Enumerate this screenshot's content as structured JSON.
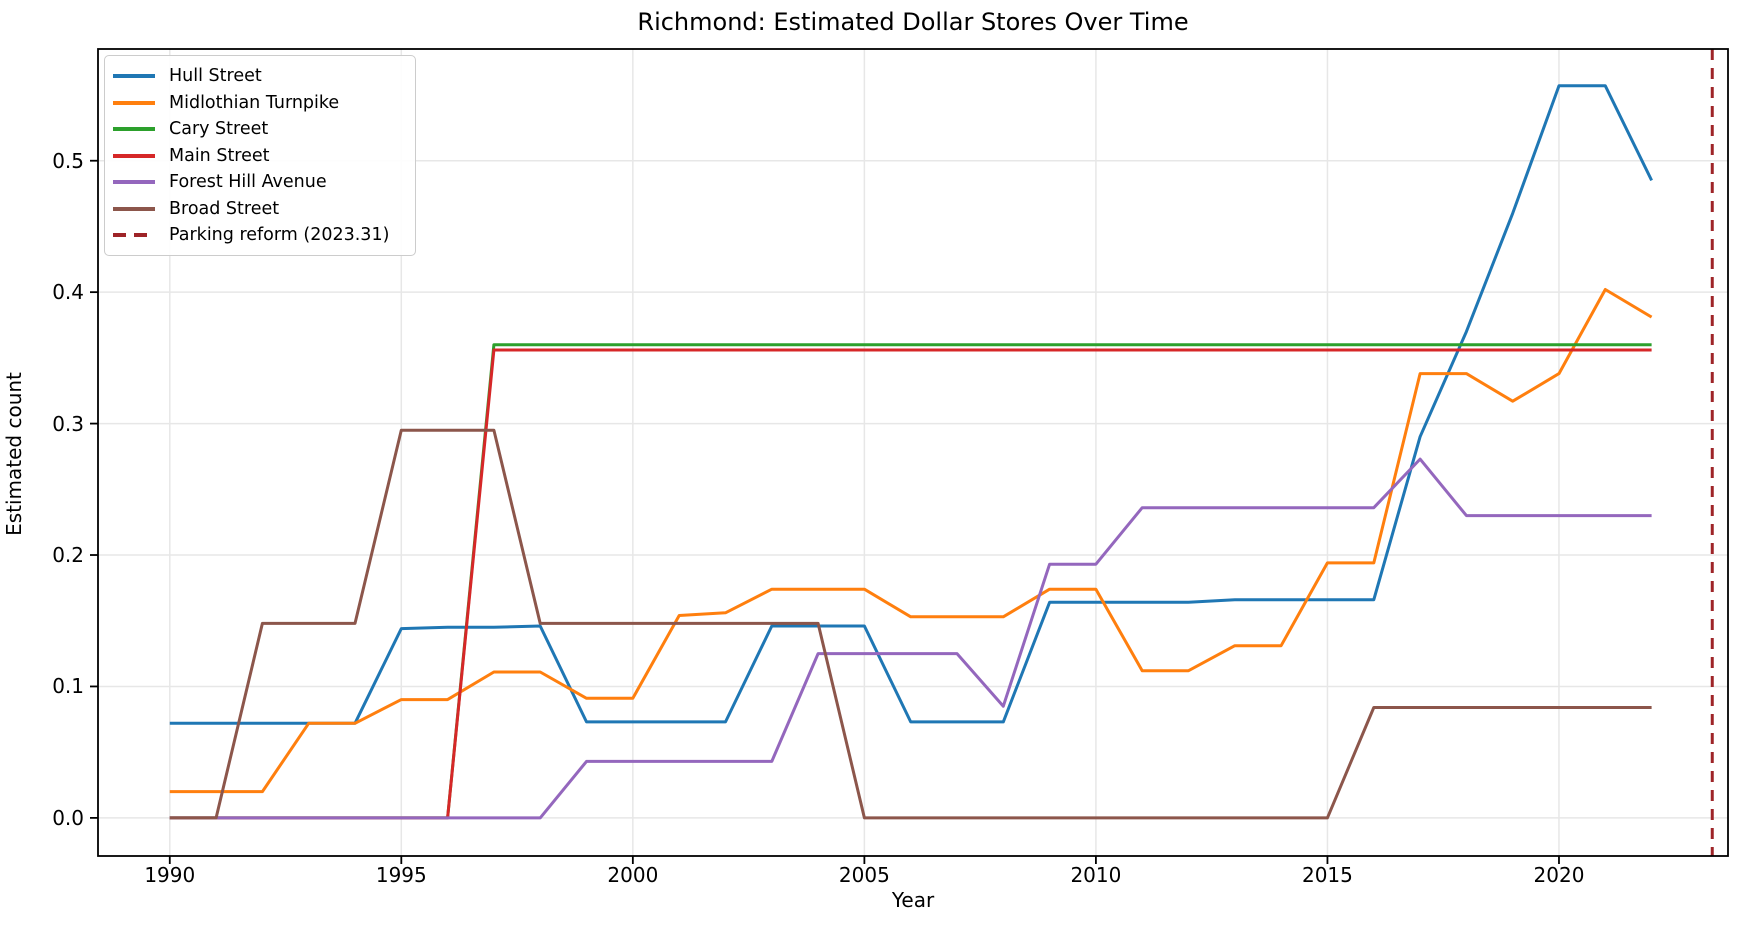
{
  "title": "Richmond: Estimated Dollar Stores Over Time",
  "chart_data": {
    "type": "line",
    "title": "Richmond: Estimated Dollar Stores Over Time",
    "xlabel": "Year",
    "ylabel": "Estimated count",
    "xlim": [
      1988.45,
      2023.65
    ],
    "ylim": [
      -0.029,
      0.585
    ],
    "xticks": [
      1990,
      1995,
      2000,
      2005,
      2010,
      2015,
      2020
    ],
    "yticks": [
      0.0,
      0.1,
      0.2,
      0.3,
      0.4,
      0.5
    ],
    "ytick_labels": [
      "0.0",
      "0.1",
      "0.2",
      "0.3",
      "0.4",
      "0.5"
    ],
    "grid": true,
    "legend_position": "upper left",
    "x": [
      1990,
      1991,
      1992,
      1993,
      1994,
      1995,
      1996,
      1997,
      1998,
      1999,
      2000,
      2001,
      2002,
      2003,
      2004,
      2005,
      2006,
      2007,
      2008,
      2009,
      2010,
      2011,
      2012,
      2013,
      2014,
      2015,
      2016,
      2017,
      2018,
      2019,
      2020,
      2021,
      2022
    ],
    "series": [
      {
        "name": "Hull Street",
        "color": "#1f77b4",
        "values": [
          0.072,
          0.072,
          0.072,
          0.072,
          0.072,
          0.144,
          0.145,
          0.145,
          0.146,
          0.073,
          0.073,
          0.073,
          0.073,
          0.146,
          0.146,
          0.146,
          0.073,
          0.073,
          0.073,
          0.164,
          0.164,
          0.164,
          0.164,
          0.166,
          0.166,
          0.166,
          0.166,
          0.29,
          0.37,
          0.46,
          0.557,
          0.557,
          0.485
        ]
      },
      {
        "name": "Midlothian Turnpike",
        "color": "#ff7f0e",
        "values": [
          0.02,
          0.02,
          0.02,
          0.072,
          0.072,
          0.09,
          0.09,
          0.111,
          0.111,
          0.091,
          0.091,
          0.154,
          0.156,
          0.174,
          0.174,
          0.174,
          0.153,
          0.153,
          0.153,
          0.174,
          0.174,
          0.112,
          0.112,
          0.131,
          0.131,
          0.194,
          0.194,
          0.338,
          0.338,
          0.317,
          0.338,
          0.402,
          0.381
        ]
      },
      {
        "name": "Cary Street",
        "color": "#2ca02c",
        "values": [
          0,
          0,
          0,
          0,
          0,
          0,
          0,
          0.36,
          0.36,
          0.36,
          0.36,
          0.36,
          0.36,
          0.36,
          0.36,
          0.36,
          0.36,
          0.36,
          0.36,
          0.36,
          0.36,
          0.36,
          0.36,
          0.36,
          0.36,
          0.36,
          0.36,
          0.36,
          0.36,
          0.36,
          0.36,
          0.36,
          0.36
        ]
      },
      {
        "name": "Main Street",
        "color": "#d62728",
        "values": [
          0,
          0,
          0,
          0,
          0,
          0,
          0,
          0.356,
          0.356,
          0.356,
          0.356,
          0.356,
          0.356,
          0.356,
          0.356,
          0.356,
          0.356,
          0.356,
          0.356,
          0.356,
          0.356,
          0.356,
          0.356,
          0.356,
          0.356,
          0.356,
          0.356,
          0.356,
          0.356,
          0.356,
          0.356,
          0.356,
          0.356
        ]
      },
      {
        "name": "Forest Hill Avenue",
        "color": "#9467bd",
        "values": [
          0,
          0,
          0,
          0,
          0,
          0,
          0,
          0,
          0,
          0.043,
          0.043,
          0.043,
          0.043,
          0.043,
          0.125,
          0.125,
          0.125,
          0.125,
          0.085,
          0.193,
          0.193,
          0.236,
          0.236,
          0.236,
          0.236,
          0.236,
          0.236,
          0.273,
          0.23,
          0.23,
          0.23,
          0.23,
          0.23
        ]
      },
      {
        "name": "Broad Street",
        "color": "#8c564b",
        "values": [
          0,
          0,
          0.148,
          0.148,
          0.148,
          0.295,
          0.295,
          0.295,
          0.148,
          0.148,
          0.148,
          0.148,
          0.148,
          0.148,
          0.148,
          0,
          0,
          0,
          0,
          0,
          0,
          0,
          0,
          0,
          0,
          0,
          0.084,
          0.084,
          0.084,
          0.084,
          0.084,
          0.084,
          0.084
        ]
      }
    ],
    "vline": {
      "label": "Parking reform (2023.31)",
      "x": 2023.31,
      "color": "#9e2428",
      "style": "dashed"
    },
    "style": {
      "grid_color": "#e7e7e7",
      "spine_color": "#000000",
      "background": "#ffffff",
      "line_width": 3
    }
  }
}
